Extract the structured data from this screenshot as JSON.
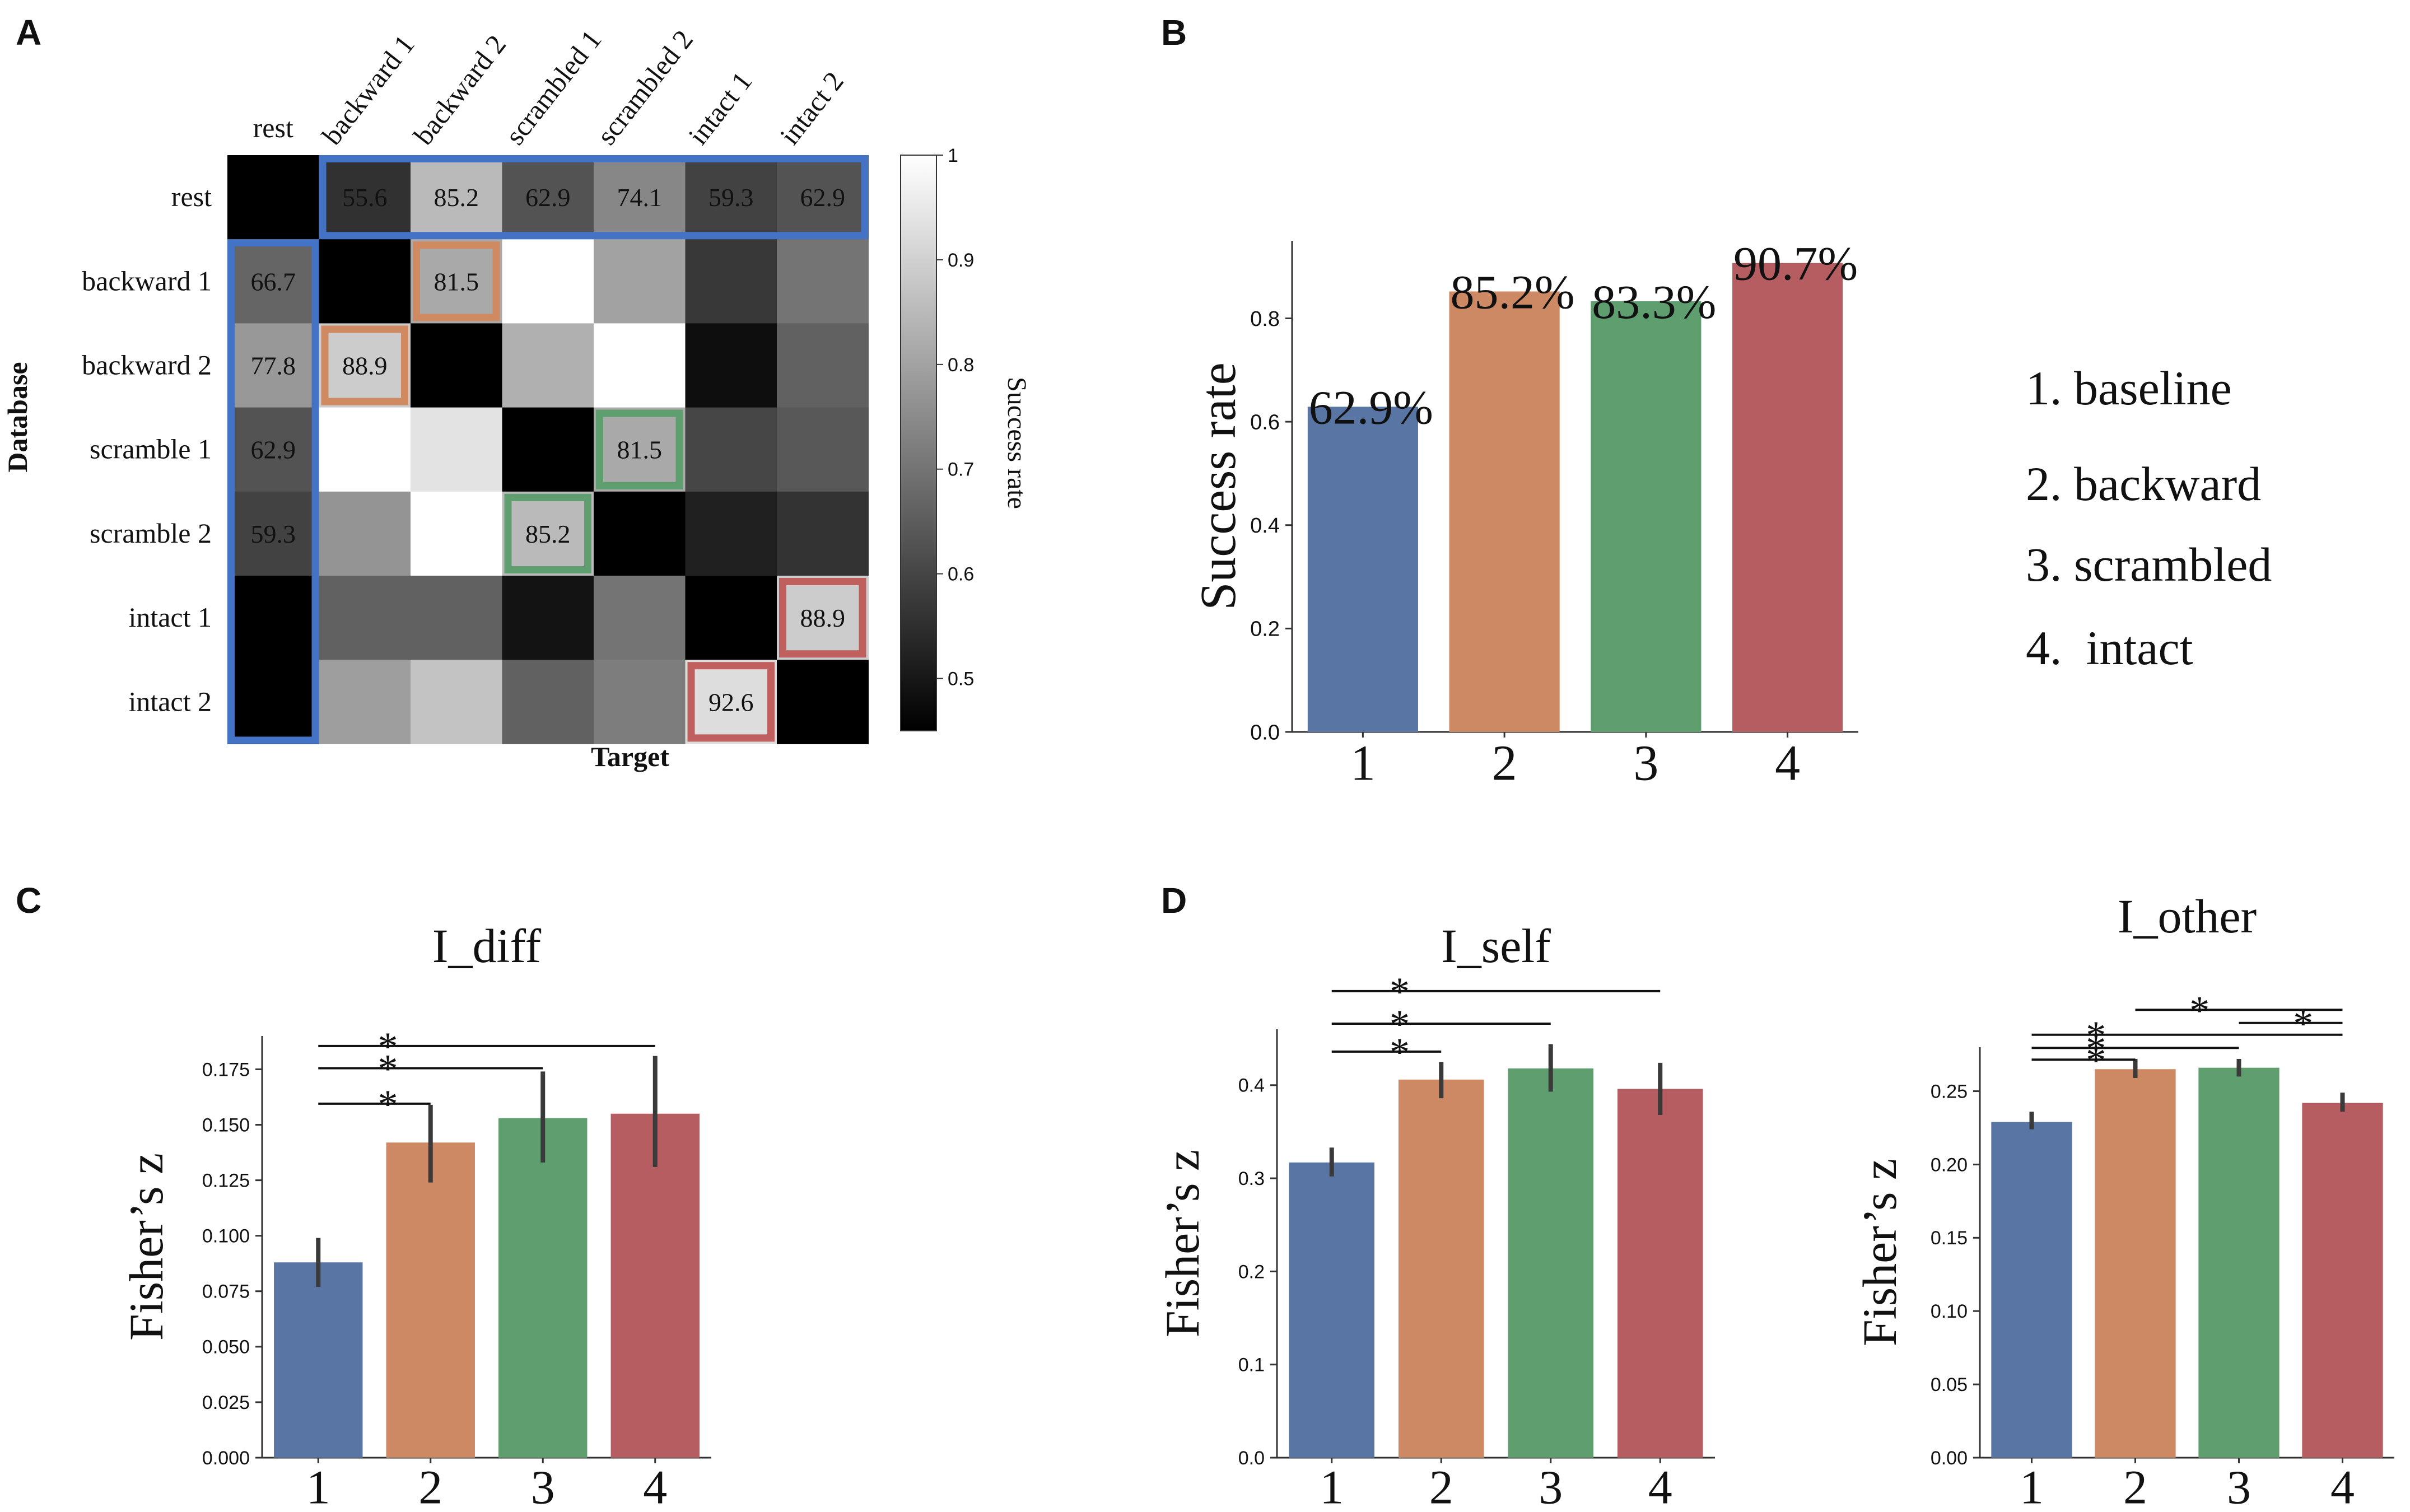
{
  "panels": {
    "A": "A",
    "B": "B",
    "C": "C",
    "D": "D"
  },
  "colors": {
    "blue": "#5975a4",
    "orange": "#cc8963",
    "green": "#5f9e6e",
    "red": "#b55d60",
    "frame_blue": "#4472c4",
    "frame_orange": "#d08a62",
    "frame_green": "#5f9e6e",
    "frame_red": "#c0605e",
    "errbar": "#3a3a3a"
  },
  "chart_data": [
    {
      "id": "A",
      "type": "heatmap",
      "title": "",
      "xlabel": "Target",
      "ylabel": "Database",
      "col_labels": [
        "rest",
        "backward 1",
        "backward 2",
        "scrambled 1",
        "scrambled 2",
        "intact 1",
        "intact 2"
      ],
      "row_labels": [
        "rest",
        "backward 1",
        "backward 2",
        "scramble 1",
        "scramble 2",
        "intact 1",
        "intact 2"
      ],
      "values": [
        [
          0.45,
          0.556,
          0.852,
          0.629,
          0.741,
          0.593,
          0.629
        ],
        [
          0.667,
          0.45,
          0.815,
          1.0,
          0.8,
          0.57,
          0.7
        ],
        [
          0.778,
          0.889,
          0.45,
          0.83,
          1.0,
          0.48,
          0.66
        ],
        [
          0.629,
          1.0,
          0.94,
          0.45,
          0.815,
          0.6,
          0.64
        ],
        [
          0.593,
          0.77,
          1.0,
          0.852,
          0.45,
          0.52,
          0.56
        ],
        [
          0.45,
          0.66,
          0.66,
          0.49,
          0.7,
          0.45,
          0.889
        ],
        [
          0.45,
          0.79,
          0.87,
          0.66,
          0.72,
          0.926,
          0.45
        ]
      ],
      "annotations": [
        {
          "row": 0,
          "col": 1,
          "text": "55.6"
        },
        {
          "row": 0,
          "col": 2,
          "text": "85.2"
        },
        {
          "row": 0,
          "col": 3,
          "text": "62.9"
        },
        {
          "row": 0,
          "col": 4,
          "text": "74.1"
        },
        {
          "row": 0,
          "col": 5,
          "text": "59.3"
        },
        {
          "row": 0,
          "col": 6,
          "text": "62.9"
        },
        {
          "row": 1,
          "col": 0,
          "text": "66.7"
        },
        {
          "row": 2,
          "col": 0,
          "text": "77.8"
        },
        {
          "row": 3,
          "col": 0,
          "text": "62.9"
        },
        {
          "row": 4,
          "col": 0,
          "text": "59.3"
        },
        {
          "row": 1,
          "col": 2,
          "text": "81.5"
        },
        {
          "row": 2,
          "col": 1,
          "text": "88.9"
        },
        {
          "row": 3,
          "col": 4,
          "text": "81.5"
        },
        {
          "row": 4,
          "col": 3,
          "text": "85.2"
        },
        {
          "row": 5,
          "col": 6,
          "text": "88.9"
        },
        {
          "row": 6,
          "col": 5,
          "text": "92.6"
        }
      ],
      "highlights": [
        {
          "kind": "row",
          "row": 0,
          "c0": 1,
          "c1": 6,
          "color": "blue"
        },
        {
          "kind": "col",
          "col": 0,
          "r0": 1,
          "r1": 6,
          "color": "blue"
        },
        {
          "kind": "cell",
          "row": 1,
          "col": 2,
          "color": "orange"
        },
        {
          "kind": "cell",
          "row": 2,
          "col": 1,
          "color": "orange"
        },
        {
          "kind": "cell",
          "row": 3,
          "col": 4,
          "color": "green"
        },
        {
          "kind": "cell",
          "row": 4,
          "col": 3,
          "color": "green"
        },
        {
          "kind": "cell",
          "row": 5,
          "col": 6,
          "color": "red"
        },
        {
          "kind": "cell",
          "row": 6,
          "col": 5,
          "color": "red"
        }
      ],
      "colorbar": {
        "label": "Success rate",
        "range": [
          0.45,
          1.0
        ],
        "ticks": [
          "1",
          "0.9",
          "0.8",
          "0.7",
          "0.6",
          "0.5"
        ],
        "tick_values": [
          1.0,
          0.9,
          0.8,
          0.7,
          0.6,
          0.5
        ]
      }
    },
    {
      "id": "B",
      "type": "bar",
      "title": "",
      "xlabel": "",
      "ylabel": "Success rate",
      "categories": [
        "1",
        "2",
        "3",
        "4"
      ],
      "values": [
        0.629,
        0.852,
        0.833,
        0.907
      ],
      "bar_labels": [
        "62.9%",
        "85.2%",
        "83.3%",
        "90.7%"
      ],
      "ylim": [
        0,
        0.95
      ],
      "yticks": [
        0.0,
        0.2,
        0.4,
        0.6,
        0.8
      ],
      "ytick_labels": [
        "0.0",
        "0.2",
        "0.4",
        "0.6",
        "0.8"
      ],
      "legend_text": [
        "1. baseline",
        "2. backward",
        "3. scrambled",
        "4.  intact"
      ]
    },
    {
      "id": "C",
      "type": "bar",
      "title": "I_diff",
      "xlabel": "",
      "ylabel": "Fisher’s z",
      "categories": [
        "1",
        "2",
        "3",
        "4"
      ],
      "values": [
        0.088,
        0.142,
        0.153,
        0.155
      ],
      "errors": [
        [
          0.077,
          0.099
        ],
        [
          0.124,
          0.159
        ],
        [
          0.133,
          0.174
        ],
        [
          0.131,
          0.181
        ]
      ],
      "ylim": [
        0,
        0.19
      ],
      "yticks": [
        0.0,
        0.025,
        0.05,
        0.075,
        0.1,
        0.125,
        0.15,
        0.175
      ],
      "ytick_labels": [
        "0.000",
        "0.025",
        "0.050",
        "0.075",
        "0.100",
        "0.125",
        "0.150",
        "0.175"
      ],
      "significance": [
        {
          "from": 1,
          "to": 2,
          "level": 0.1595,
          "label": "*"
        },
        {
          "from": 1,
          "to": 3,
          "level": 0.1755,
          "label": "*"
        },
        {
          "from": 1,
          "to": 4,
          "level": 0.1855,
          "label": "*"
        }
      ]
    },
    {
      "id": "D1",
      "type": "bar",
      "title": "I_self",
      "xlabel": "",
      "ylabel": "Fisher’s z",
      "categories": [
        "1",
        "2",
        "3",
        "4"
      ],
      "values": [
        0.317,
        0.406,
        0.418,
        0.396
      ],
      "errors": [
        [
          0.302,
          0.333
        ],
        [
          0.386,
          0.425
        ],
        [
          0.393,
          0.444
        ],
        [
          0.368,
          0.424
        ]
      ],
      "ylim": [
        0,
        0.46
      ],
      "yticks": [
        0.0,
        0.1,
        0.2,
        0.3,
        0.4
      ],
      "ytick_labels": [
        "0.0",
        "0.1",
        "0.2",
        "0.3",
        "0.4"
      ],
      "significance": [
        {
          "from": 1,
          "to": 2,
          "level": 0.436,
          "label": "*"
        },
        {
          "from": 1,
          "to": 3,
          "level": 0.466,
          "label": "*"
        },
        {
          "from": 1,
          "to": 4,
          "level": 0.501,
          "label": "*"
        }
      ]
    },
    {
      "id": "D2",
      "type": "bar",
      "title": "I_other",
      "xlabel": "",
      "ylabel": "Fisher’s z",
      "categories": [
        "1",
        "2",
        "3",
        "4"
      ],
      "values": [
        0.229,
        0.265,
        0.266,
        0.242
      ],
      "errors": [
        [
          0.224,
          0.236
        ],
        [
          0.259,
          0.272
        ],
        [
          0.26,
          0.272
        ],
        [
          0.236,
          0.249
        ]
      ],
      "ylim": [
        0,
        0.28
      ],
      "yticks": [
        0.0,
        0.05,
        0.1,
        0.15,
        0.2,
        0.25
      ],
      "ytick_labels": [
        "0.00",
        "0.05",
        "0.10",
        "0.15",
        "0.20",
        "0.25"
      ],
      "significance": [
        {
          "from": 1,
          "to": 2,
          "level": 0.2715,
          "label": "*"
        },
        {
          "from": 1,
          "to": 3,
          "level": 0.2795,
          "label": "*"
        },
        {
          "from": 1,
          "to": 4,
          "level": 0.2885,
          "label": "*"
        },
        {
          "from": 3,
          "to": 4,
          "level": 0.2965,
          "label": "*"
        },
        {
          "from": 2,
          "to": 4,
          "level": 0.3055,
          "label": "*"
        }
      ]
    }
  ]
}
